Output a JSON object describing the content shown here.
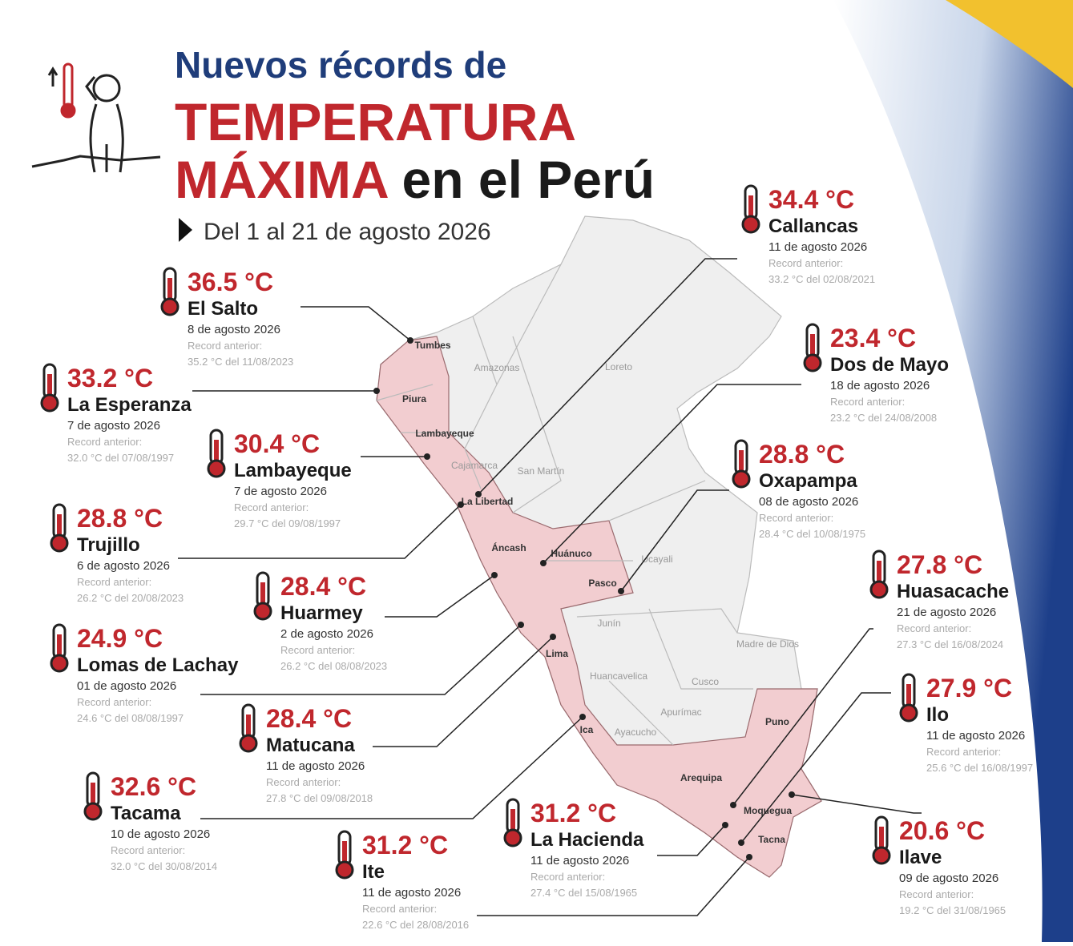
{
  "header": {
    "line1": "Nuevos récords de",
    "line2": "TEMPERATURA",
    "line3_red": "MÁXIMA",
    "line3_black": "en el Perú",
    "subtitle": "Del 1 al 21 de agosto 2026"
  },
  "records": [
    {
      "temp": "36.5 °C",
      "station": "El Salto",
      "date": "8 de agosto 2026",
      "previous_label": "Record anterior:",
      "previous": "35.2 °C del 11/08/2023"
    },
    {
      "temp": "33.2 °C",
      "station": "La Esperanza",
      "date": "7 de agosto 2026",
      "previous_label": "Record anterior:",
      "previous": "32.0 °C del 07/08/1997"
    },
    {
      "temp": "30.4 °C",
      "station": "Lambayeque",
      "date": "7 de agosto 2026",
      "previous_label": "Record anterior:",
      "previous": "29.7 °C del 09/08/1997"
    },
    {
      "temp": "28.8 °C",
      "station": "Trujillo",
      "date": "6 de agosto 2026",
      "previous_label": "Record anterior:",
      "previous": "26.2 °C del 20/08/2023"
    },
    {
      "temp": "28.4 °C",
      "station": "Huarmey",
      "date": "2 de agosto 2026",
      "previous_label": "Record anterior:",
      "previous": "26.2 °C del 08/08/2023"
    },
    {
      "temp": "24.9 °C",
      "station": "Lomas de Lachay",
      "date": "01 de agosto 2026",
      "previous_label": "Record anterior:",
      "previous": "24.6 °C del 08/08/1997"
    },
    {
      "temp": "28.4 °C",
      "station": "Matucana",
      "date": "11 de agosto 2026",
      "previous_label": "Record anterior:",
      "previous": "27.8 °C del 09/08/2018"
    },
    {
      "temp": "32.6 °C",
      "station": "Tacama",
      "date": "10 de agosto 2026",
      "previous_label": "Record anterior:",
      "previous": "32.0 °C del 30/08/2014"
    },
    {
      "temp": "31.2 °C",
      "station": "Ite",
      "date": "11 de agosto 2026",
      "previous_label": "Record anterior:",
      "previous": "22.6 °C del 28/08/2016"
    },
    {
      "temp": "31.2 °C",
      "station": "La Hacienda",
      "date": "11 de agosto 2026",
      "previous_label": "Record anterior:",
      "previous": "27.4 °C del 15/08/1965"
    },
    {
      "temp": "34.4 °C",
      "station": "Callancas",
      "date": "11 de agosto 2026",
      "previous_label": "Record anterior:",
      "previous": "33.2 °C del 02/08/2021"
    },
    {
      "temp": "23.4 °C",
      "station": "Dos de Mayo",
      "date": "18 de agosto 2026",
      "previous_label": "Record anterior:",
      "previous": "23.2 °C del 24/08/2008"
    },
    {
      "temp": "28.8 °C",
      "station": "Oxapampa",
      "date": "08 de agosto 2026",
      "previous_label": "Record anterior:",
      "previous": "28.4 °C del 10/08/1975"
    },
    {
      "temp": "27.8 °C",
      "station": "Huasacache",
      "date": "21 de agosto 2026",
      "previous_label": "Record anterior:",
      "previous": "27.3 °C del 16/08/2024"
    },
    {
      "temp": "27.9 °C",
      "station": "Ilo",
      "date": "11 de agosto 2026",
      "previous_label": "Record anterior:",
      "previous": "25.6 °C del 16/08/1997"
    },
    {
      "temp": "20.6 °C",
      "station": "Ilave",
      "date": "09 de agosto 2026",
      "previous_label": "Record anterior:",
      "previous": "19.2 °C del 31/08/1965"
    }
  ],
  "regions": [
    "Tumbes",
    "Piura",
    "Lambayeque",
    "Cajamarca",
    "Amazonas",
    "Loreto",
    "San Martín",
    "La Libertad",
    "Áncash",
    "Huánuco",
    "Pasco",
    "Ucayali",
    "Lima",
    "Junín",
    "Huancavelica",
    "Cusco",
    "Madre de Dios",
    "Apurímac",
    "Ayacucho",
    "Ica",
    "Arequipa",
    "Puno",
    "Moquegua",
    "Tacna"
  ]
}
